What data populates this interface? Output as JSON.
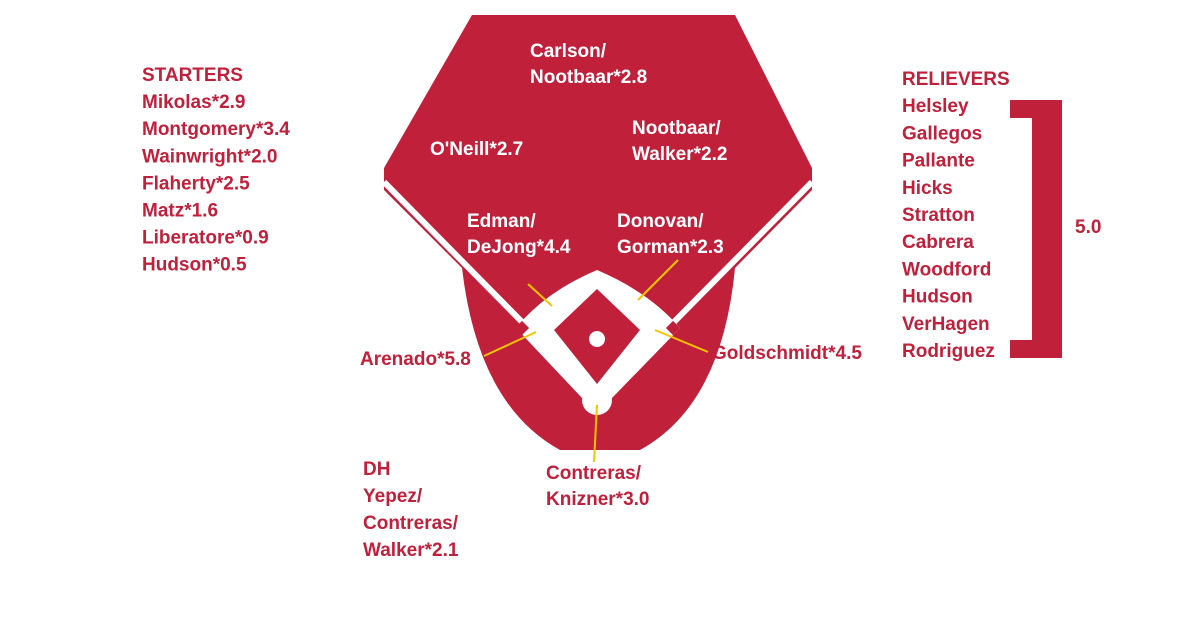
{
  "starters": {
    "title": "STARTERS",
    "players": [
      "Mikolas*2.9",
      "Montgomery*3.4",
      "Wainwright*2.0",
      "Flaherty*2.5",
      "Matz*1.6",
      "Liberatore*0.9",
      "Hudson*0.5"
    ]
  },
  "relievers": {
    "title": "RELIEVERS",
    "players": [
      "Helsley",
      "Gallegos",
      "Pallante",
      "Hicks",
      "Stratton",
      "Cabrera",
      "Woodford",
      "Hudson",
      "VerHagen",
      "Rodriguez"
    ],
    "group_value": "5.0"
  },
  "field": {
    "center_field": [
      "Carlson/",
      "Nootbaar*2.8"
    ],
    "left_field": [
      "O'Neill*2.7"
    ],
    "right_field": [
      "Nootbaar/",
      "Walker*2.2"
    ],
    "shortstop": [
      "Edman/",
      "DeJong*4.4"
    ],
    "second_base": [
      "Donovan/",
      "Gorman*2.3"
    ],
    "third_base": [
      "Arenado*5.8"
    ],
    "first_base": [
      "Goldschmidt*4.5"
    ],
    "catcher": [
      "Contreras/",
      "Knizner*3.0"
    ]
  },
  "dh": {
    "title": "DH",
    "players": [
      "Yepez/",
      "Contreras/",
      "Walker*2.1"
    ]
  }
}
